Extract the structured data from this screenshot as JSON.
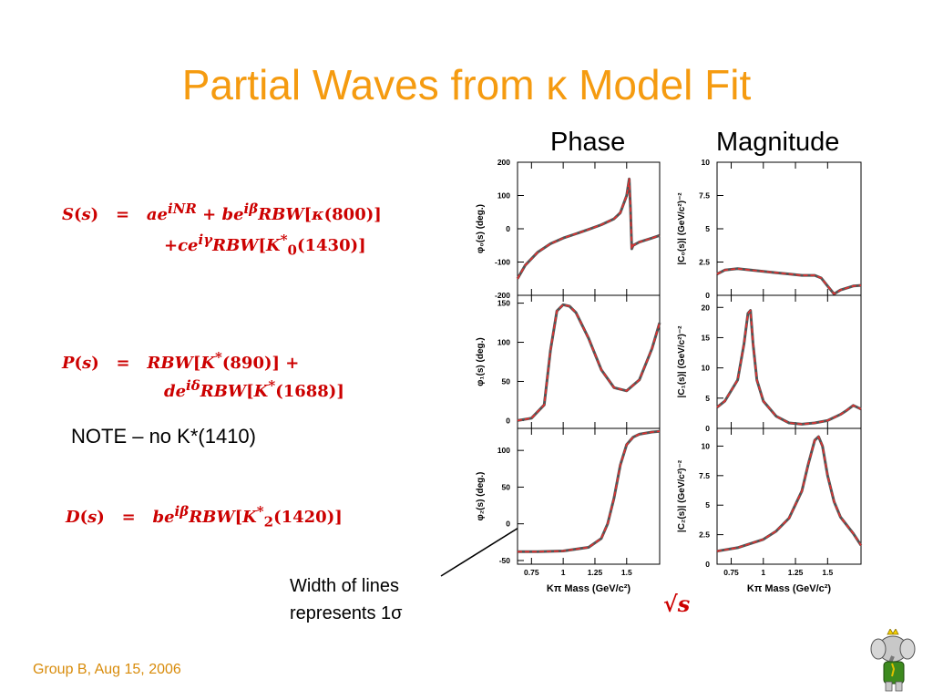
{
  "title": "Partial Waves from κ Model Fit",
  "headers": {
    "phase": "Phase",
    "magnitude": "Magnitude"
  },
  "equations": {
    "s_line1": "S(s)  =  ae^{iNR} + be^{iβ}RBW[κ(800)]",
    "s_line2": "+ce^{iγ}RBW[K*_0(1430)]",
    "p_line1": "P(s)  =  RBW[K*(890)] +",
    "p_line2": "de^{iδ}RBW[K*(1688)]",
    "d_line1": "D(s)  =  be^{iβ}RBW[K*_2(1420)]"
  },
  "note": "NOTE – no K*(1410)",
  "annotation": {
    "line1": "Width of lines",
    "line2": "represents 1σ"
  },
  "sqrt_label": "√s",
  "footer": "Group B, Aug 15, 2006",
  "x_axis": {
    "label": "Kπ Mass (GeV/c²)",
    "ticks": [
      "0.75",
      "1",
      "1.25",
      "1.5"
    ]
  },
  "chart_data": [
    {
      "type": "line",
      "ylabel": "φ₀(s) (deg.)",
      "ylim": [
        -200,
        200
      ],
      "yticks": [
        200,
        100,
        0,
        -100,
        -200
      ],
      "xlim": [
        0.64,
        1.76
      ],
      "x": [
        0.64,
        0.7,
        0.8,
        0.9,
        1.0,
        1.1,
        1.2,
        1.3,
        1.4,
        1.45,
        1.5,
        1.52,
        1.53,
        1.54,
        1.55,
        1.6,
        1.7,
        1.76
      ],
      "y": [
        -150,
        -110,
        -70,
        -45,
        -28,
        -15,
        -2,
        12,
        30,
        48,
        100,
        150,
        60,
        -60,
        -50,
        -40,
        -28,
        -20
      ]
    },
    {
      "type": "line",
      "ylabel": "φ₁(s) (deg.)",
      "ylim": [
        -10,
        160
      ],
      "yticks": [
        150,
        100,
        50,
        0
      ],
      "xlim": [
        0.64,
        1.76
      ],
      "x": [
        0.64,
        0.75,
        0.85,
        0.9,
        0.95,
        1.0,
        1.05,
        1.1,
        1.2,
        1.3,
        1.4,
        1.5,
        1.6,
        1.7,
        1.76
      ],
      "y": [
        0,
        3,
        20,
        90,
        140,
        148,
        146,
        138,
        105,
        65,
        42,
        38,
        52,
        92,
        125
      ]
    },
    {
      "type": "line",
      "ylabel": "φ₂(s) (deg.)",
      "ylim": [
        -55,
        130
      ],
      "yticks": [
        100,
        50,
        0,
        -50
      ],
      "xlim": [
        0.64,
        1.76
      ],
      "x": [
        0.64,
        0.8,
        1.0,
        1.2,
        1.3,
        1.35,
        1.4,
        1.45,
        1.5,
        1.55,
        1.6,
        1.7,
        1.76
      ],
      "y": [
        -38,
        -38,
        -37,
        -32,
        -20,
        0,
        35,
        80,
        108,
        118,
        122,
        125,
        126
      ]
    },
    {
      "type": "line",
      "ylabel": "|C₀(s)| (GeV/c²)⁻²",
      "ylim": [
        0,
        10
      ],
      "yticks": [
        10,
        7.5,
        5,
        2.5,
        0
      ],
      "xlim": [
        0.64,
        1.76
      ],
      "x": [
        0.64,
        0.7,
        0.8,
        0.9,
        1.0,
        1.1,
        1.2,
        1.3,
        1.4,
        1.45,
        1.5,
        1.55,
        1.6,
        1.7,
        1.76
      ],
      "y": [
        1.6,
        1.9,
        2.0,
        1.9,
        1.8,
        1.7,
        1.6,
        1.5,
        1.5,
        1.3,
        0.7,
        0.1,
        0.4,
        0.7,
        0.75
      ]
    },
    {
      "type": "line",
      "ylabel": "|C₁(s)| (GeV/c²)⁻²",
      "ylim": [
        0,
        22
      ],
      "yticks": [
        20,
        15,
        10,
        5,
        0
      ],
      "xlim": [
        0.64,
        1.76
      ],
      "x": [
        0.64,
        0.7,
        0.8,
        0.85,
        0.88,
        0.9,
        0.92,
        0.95,
        1.0,
        1.1,
        1.2,
        1.3,
        1.4,
        1.5,
        1.6,
        1.65,
        1.7,
        1.76
      ],
      "y": [
        3.5,
        4.5,
        8,
        14,
        19,
        19.5,
        14,
        8,
        4.5,
        2.0,
        0.9,
        0.7,
        0.9,
        1.3,
        2.3,
        3.0,
        3.8,
        3.2
      ]
    },
    {
      "type": "line",
      "ylabel": "|C₂(s)| (GeV/c²)⁻²",
      "ylim": [
        0,
        11.5
      ],
      "yticks": [
        10,
        7.5,
        5,
        2.5,
        0
      ],
      "xlim": [
        0.64,
        1.76
      ],
      "x": [
        0.64,
        0.8,
        1.0,
        1.1,
        1.2,
        1.3,
        1.35,
        1.4,
        1.43,
        1.46,
        1.5,
        1.55,
        1.6,
        1.7,
        1.76
      ],
      "y": [
        1.1,
        1.4,
        2.1,
        2.8,
        3.9,
        6.2,
        8.5,
        10.5,
        10.8,
        10.0,
        7.5,
        5.3,
        4.0,
        2.6,
        1.6
      ]
    }
  ]
}
